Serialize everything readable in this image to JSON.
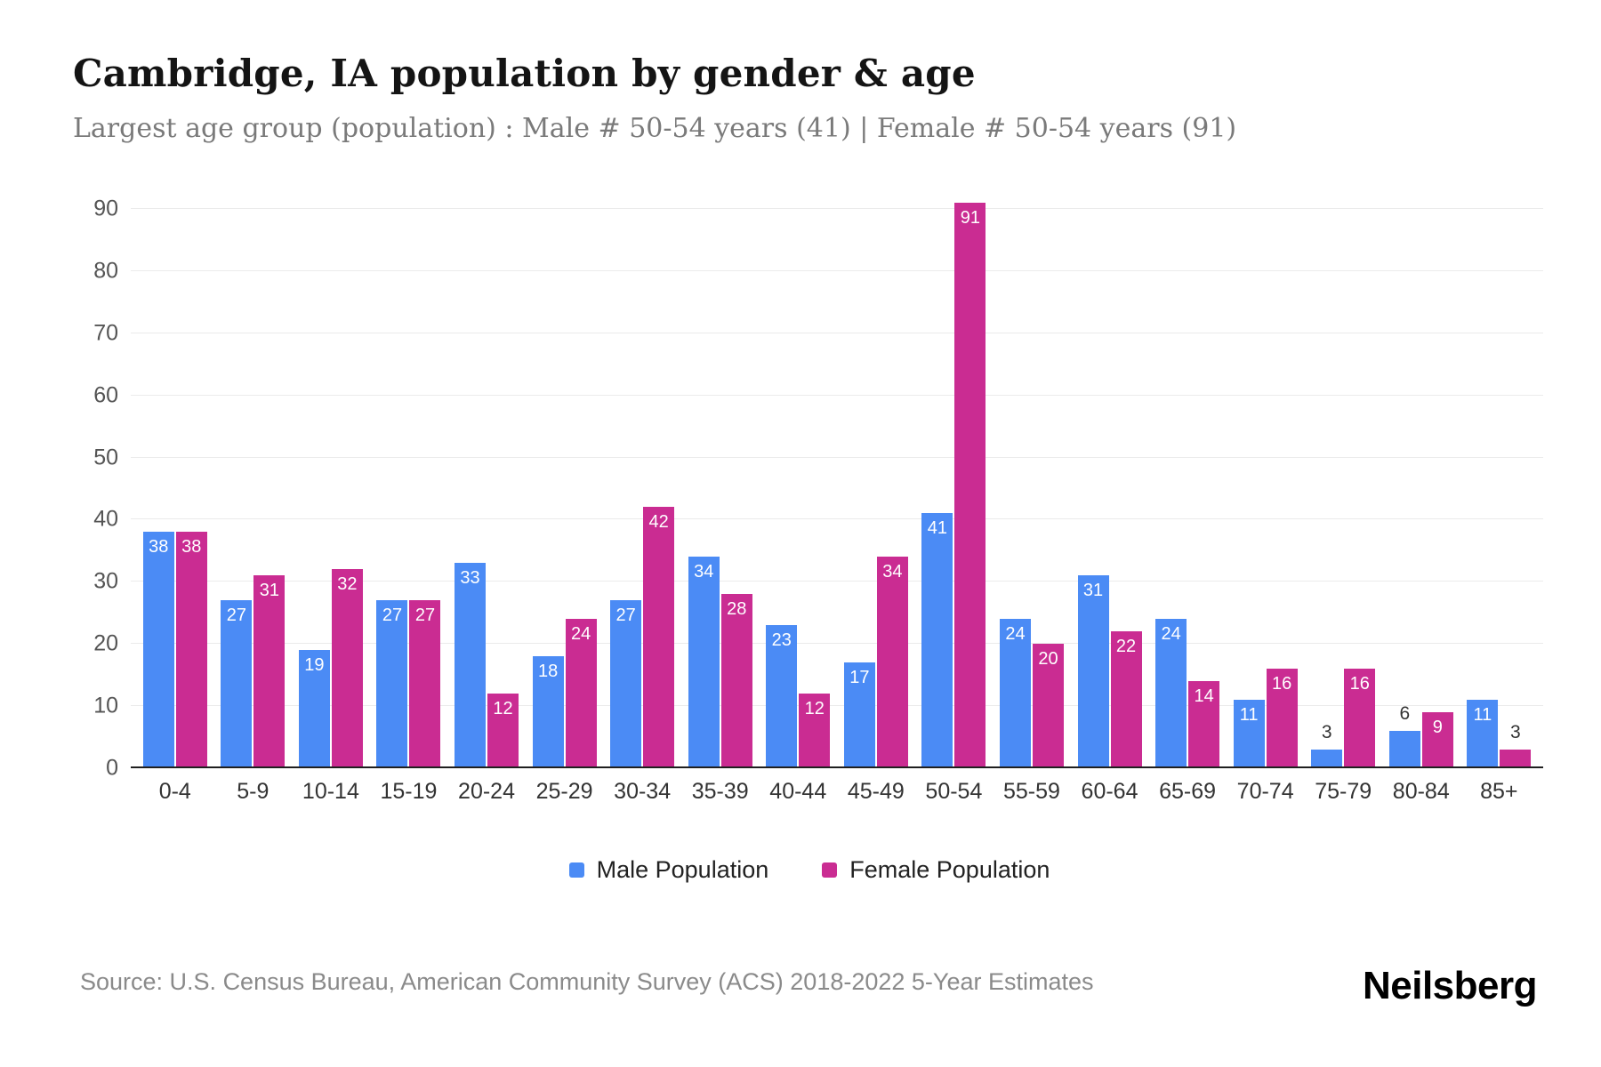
{
  "header": {
    "title": "Cambridge, IA population by gender & age",
    "subtitle": "Largest age group (population) : Male # 50-54 years (41) | Female # 50-54 years (91)"
  },
  "chart_data": {
    "type": "bar",
    "categories": [
      "0-4",
      "5-9",
      "10-14",
      "15-19",
      "20-24",
      "25-29",
      "30-34",
      "35-39",
      "40-44",
      "45-49",
      "50-54",
      "55-59",
      "60-64",
      "65-69",
      "70-74",
      "75-79",
      "80-84",
      "85+"
    ],
    "series": [
      {
        "name": "Male Population",
        "color": "#4b8bf5",
        "values": [
          38,
          27,
          19,
          27,
          33,
          18,
          27,
          34,
          23,
          17,
          41,
          24,
          31,
          24,
          11,
          3,
          6,
          11
        ]
      },
      {
        "name": "Female Population",
        "color": "#ca2c92",
        "values": [
          38,
          31,
          32,
          27,
          12,
          24,
          42,
          28,
          12,
          34,
          91,
          20,
          22,
          14,
          16,
          16,
          9,
          3
        ]
      }
    ],
    "title": "Cambridge, IA population by gender & age",
    "xlabel": "",
    "ylabel": "",
    "ylim": [
      0,
      90
    ],
    "yticks": [
      0,
      10,
      20,
      30,
      40,
      50,
      60,
      70,
      80,
      90
    ],
    "grid": true,
    "legend_position": "bottom",
    "label_above_threshold": 6
  },
  "footer": {
    "source": "Source: U.S. Census Bureau, American Community Survey (ACS) 2018-2022 5-Year Estimates",
    "brand": "Neilsberg"
  }
}
